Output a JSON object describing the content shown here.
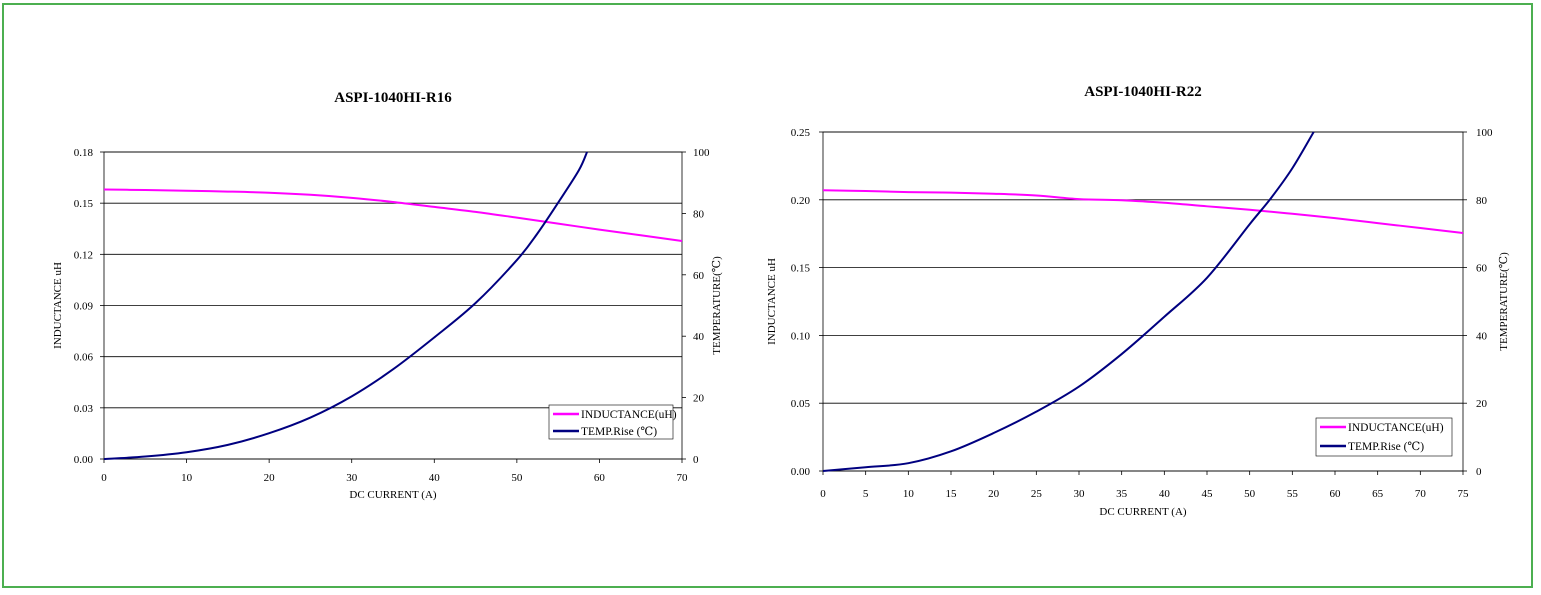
{
  "colors": {
    "frame_border": "#4caf50",
    "inductance_line": "#ff00ff",
    "temp_line": "#000080",
    "gridline": "#000000",
    "background": "#ffffff"
  },
  "chart_data": [
    {
      "type": "line",
      "title": "ASPI-1040HI-R16",
      "xlabel": "DC CURRENT (A)",
      "ylabel": "INDUCTANCE uH",
      "y2label": "TEMPERATURE(℃)",
      "xlim": [
        0,
        70
      ],
      "ylim": [
        0,
        0.18
      ],
      "y2lim": [
        0,
        100
      ],
      "x_ticks": [
        "0",
        "10",
        "20",
        "30",
        "40",
        "50",
        "60",
        "70"
      ],
      "x_tick_values": [
        0,
        10,
        20,
        30,
        40,
        50,
        60,
        70
      ],
      "y_ticks": [
        "0.00",
        "0.03",
        "0.06",
        "0.09",
        "0.12",
        "0.15",
        "0.18"
      ],
      "y_tick_values": [
        0,
        0.03,
        0.06,
        0.09,
        0.12,
        0.15,
        0.18
      ],
      "y2_ticks": [
        "0",
        "20",
        "40",
        "60",
        "80",
        "100"
      ],
      "y2_tick_values": [
        0,
        20,
        40,
        60,
        80,
        100
      ],
      "grid": "horizontal",
      "legend_position": "bottom-right",
      "series": [
        {
          "name": "INDUCTANCE(uH)",
          "axis": "left",
          "color": "#ff00ff",
          "x": [
            0,
            5,
            10,
            15,
            20,
            25,
            30,
            35,
            40,
            45,
            50,
            55,
            60,
            65,
            70
          ],
          "y": [
            0.158,
            0.1577,
            0.1573,
            0.1568,
            0.1561,
            0.1549,
            0.1531,
            0.1507,
            0.1478,
            0.1449,
            0.1415,
            0.138,
            0.1345,
            0.1312,
            0.1278
          ]
        },
        {
          "name": "TEMP.Rise (℃)",
          "axis": "right",
          "color": "#000080",
          "x": [
            0,
            5,
            10,
            15,
            20,
            25,
            30,
            35,
            40,
            45,
            50,
            52.5,
            55,
            57.5,
            58.5
          ],
          "y": [
            0,
            0.8,
            2.2,
            4.6,
            8.4,
            13.5,
            20.4,
            29.2,
            39.6,
            50.8,
            64.8,
            73.5,
            83.5,
            94,
            100
          ]
        }
      ]
    },
    {
      "type": "line",
      "title": "ASPI-1040HI-R22",
      "xlabel": "DC CURRENT (A)",
      "ylabel": "INDUCTANCE uH",
      "y2label": "TEMPERATURE(℃)",
      "xlim": [
        0,
        75
      ],
      "ylim": [
        0,
        0.25
      ],
      "y2lim": [
        0,
        100
      ],
      "x_ticks": [
        "0",
        "5",
        "10",
        "15",
        "20",
        "25",
        "30",
        "35",
        "40",
        "45",
        "50",
        "55",
        "60",
        "65",
        "70",
        "75"
      ],
      "x_tick_values": [
        0,
        5,
        10,
        15,
        20,
        25,
        30,
        35,
        40,
        45,
        50,
        55,
        60,
        65,
        70,
        75
      ],
      "y_ticks": [
        "0.00",
        "0.05",
        "0.10",
        "0.15",
        "0.20",
        "0.25"
      ],
      "y_tick_values": [
        0,
        0.05,
        0.1,
        0.15,
        0.2,
        0.25
      ],
      "y2_ticks": [
        "0",
        "20",
        "40",
        "60",
        "80",
        "100"
      ],
      "y2_tick_values": [
        0,
        20,
        40,
        60,
        80,
        100
      ],
      "grid": "horizontal",
      "legend_position": "bottom-right",
      "series": [
        {
          "name": "INDUCTANCE(uH)",
          "axis": "left",
          "color": "#ff00ff",
          "x": [
            0,
            5,
            10,
            15,
            20,
            25,
            30,
            35,
            40,
            45,
            50,
            55,
            60,
            65,
            70,
            75
          ],
          "y": [
            0.207,
            0.2065,
            0.2057,
            0.2053,
            0.2045,
            0.2032,
            0.2005,
            0.1997,
            0.1978,
            0.1952,
            0.1927,
            0.1897,
            0.1865,
            0.1828,
            0.1792,
            0.1755
          ]
        },
        {
          "name": "TEMP.Rise (℃)",
          "axis": "right",
          "color": "#000080",
          "x": [
            0,
            5,
            10,
            15,
            20,
            25,
            30,
            35,
            40,
            45,
            50,
            52.5,
            55,
            57.5
          ],
          "y": [
            0,
            1.1,
            2.3,
            5.8,
            11.2,
            17.5,
            24.9,
            34.5,
            45.5,
            57.0,
            72.8,
            80.5,
            89.3,
            100
          ]
        }
      ]
    }
  ]
}
